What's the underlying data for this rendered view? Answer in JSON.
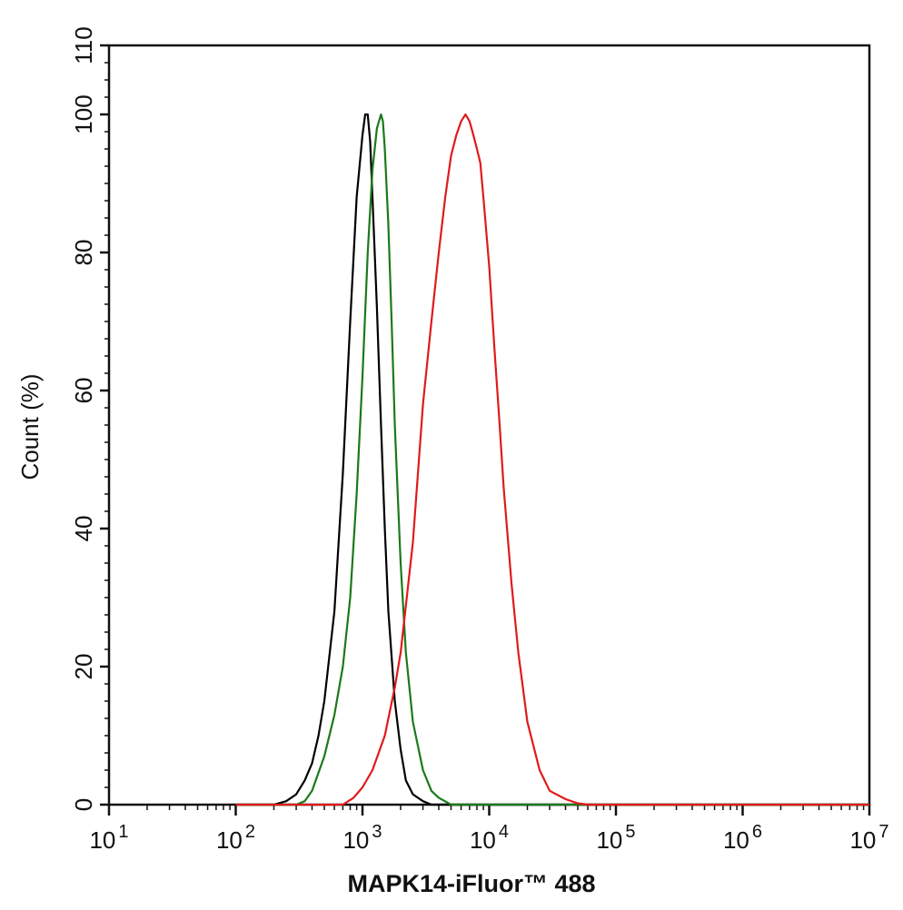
{
  "chart_data": {
    "type": "line",
    "title": "",
    "xlabel": "MAPK14-iFluor™ 488",
    "ylabel": "Count  (%)",
    "x_scale": "log",
    "xlim": [
      10,
      10000000
    ],
    "ylim": [
      0,
      110
    ],
    "grid": false,
    "x_ticks": [
      {
        "value": 10,
        "base": "10",
        "exp": "1"
      },
      {
        "value": 100,
        "base": "10",
        "exp": "2"
      },
      {
        "value": 1000,
        "base": "10",
        "exp": "3"
      },
      {
        "value": 10000,
        "base": "10",
        "exp": "4"
      },
      {
        "value": 100000,
        "base": "10",
        "exp": "5"
      },
      {
        "value": 1000000,
        "base": "10",
        "exp": "6"
      },
      {
        "value": 10000000,
        "base": "10",
        "exp": "7"
      }
    ],
    "y_ticks": [
      0,
      20,
      40,
      60,
      80,
      100,
      110
    ],
    "series": [
      {
        "color": "#000000",
        "points": [
          [
            100,
            0
          ],
          [
            200,
            0
          ],
          [
            250,
            0.5
          ],
          [
            300,
            1.5
          ],
          [
            350,
            3.5
          ],
          [
            400,
            6
          ],
          [
            450,
            10
          ],
          [
            500,
            15
          ],
          [
            600,
            28
          ],
          [
            700,
            48
          ],
          [
            800,
            70
          ],
          [
            900,
            88
          ],
          [
            1000,
            97
          ],
          [
            1050,
            100
          ],
          [
            1100,
            100
          ],
          [
            1150,
            96
          ],
          [
            1200,
            88
          ],
          [
            1300,
            72
          ],
          [
            1400,
            55
          ],
          [
            1500,
            40
          ],
          [
            1600,
            28
          ],
          [
            1800,
            15
          ],
          [
            2000,
            8
          ],
          [
            2200,
            3.5
          ],
          [
            2500,
            1.5
          ],
          [
            3000,
            0.5
          ],
          [
            3500,
            0
          ],
          [
            10000000,
            0
          ]
        ]
      },
      {
        "color": "#1a7a1a",
        "points": [
          [
            100,
            0
          ],
          [
            300,
            0
          ],
          [
            350,
            0.5
          ],
          [
            400,
            2
          ],
          [
            500,
            7
          ],
          [
            600,
            13
          ],
          [
            700,
            20
          ],
          [
            800,
            30
          ],
          [
            900,
            45
          ],
          [
            1000,
            62
          ],
          [
            1100,
            80
          ],
          [
            1200,
            92
          ],
          [
            1300,
            98
          ],
          [
            1400,
            100
          ],
          [
            1450,
            99
          ],
          [
            1500,
            95
          ],
          [
            1600,
            84
          ],
          [
            1700,
            70
          ],
          [
            1800,
            55
          ],
          [
            2000,
            35
          ],
          [
            2200,
            22
          ],
          [
            2500,
            12
          ],
          [
            3000,
            5
          ],
          [
            3500,
            2
          ],
          [
            4000,
            1
          ],
          [
            5000,
            0
          ],
          [
            10000000,
            0
          ]
        ]
      },
      {
        "color": "#e01a1a",
        "points": [
          [
            100,
            0
          ],
          [
            700,
            0
          ],
          [
            850,
            1
          ],
          [
            1000,
            2.5
          ],
          [
            1200,
            5
          ],
          [
            1500,
            10
          ],
          [
            1800,
            17
          ],
          [
            2000,
            22
          ],
          [
            2500,
            38
          ],
          [
            3000,
            58
          ],
          [
            3500,
            70
          ],
          [
            4000,
            80
          ],
          [
            4500,
            88
          ],
          [
            5000,
            94
          ],
          [
            5500,
            97
          ],
          [
            6000,
            99
          ],
          [
            6500,
            100
          ],
          [
            7000,
            99
          ],
          [
            7500,
            97
          ],
          [
            8000,
            95
          ],
          [
            8500,
            93
          ],
          [
            9000,
            88
          ],
          [
            10000,
            78
          ],
          [
            11000,
            66
          ],
          [
            12000,
            56
          ],
          [
            13000,
            46
          ],
          [
            15000,
            32
          ],
          [
            17000,
            22
          ],
          [
            20000,
            12
          ],
          [
            25000,
            5
          ],
          [
            30000,
            2
          ],
          [
            40000,
            0.8
          ],
          [
            50000,
            0.2
          ],
          [
            60000,
            0
          ],
          [
            10000000,
            0
          ]
        ]
      }
    ]
  }
}
